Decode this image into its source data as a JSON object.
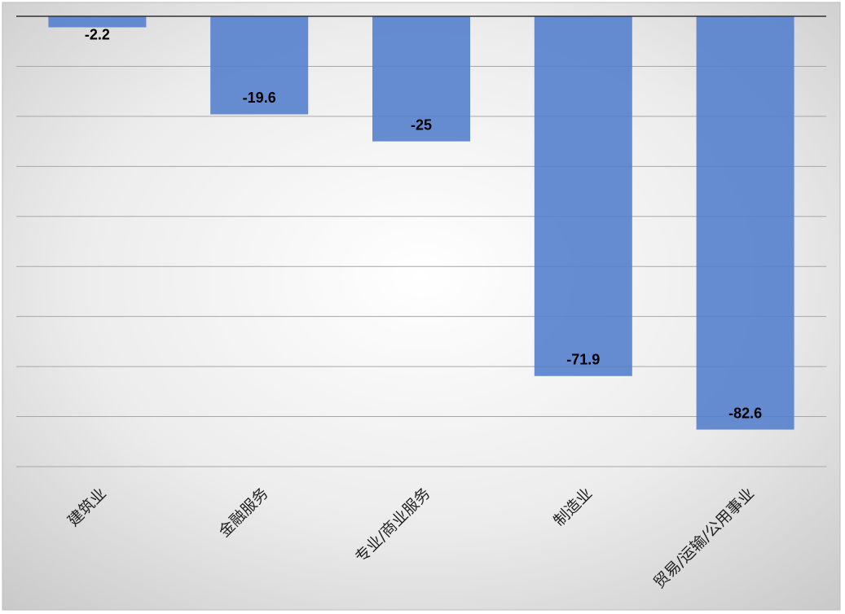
{
  "chart_data": {
    "type": "bar",
    "categories": [
      "建筑业",
      "金融服务",
      "专业/商业服务",
      "制造业",
      "贸易/运输/公用事业"
    ],
    "values": [
      -2.2,
      -19.6,
      -25,
      -71.9,
      -82.6
    ],
    "color": "#5580cc",
    "ylim": [
      -90,
      0
    ],
    "yticks": [
      0,
      -10,
      -20,
      -30,
      -40,
      -50,
      -60,
      -70,
      -80,
      -90
    ],
    "grid": true
  }
}
